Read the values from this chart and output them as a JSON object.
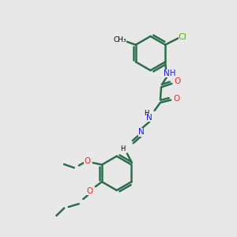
{
  "background_color": "#e8e8e8",
  "bond_color": "#2d6e4e",
  "N_color": "#1a1aff",
  "O_color": "#ff2222",
  "Cl_color": "#4db300",
  "lw": 1.8,
  "fs": 7.5,
  "xlim": [
    0,
    10
  ],
  "ylim": [
    0,
    10
  ]
}
